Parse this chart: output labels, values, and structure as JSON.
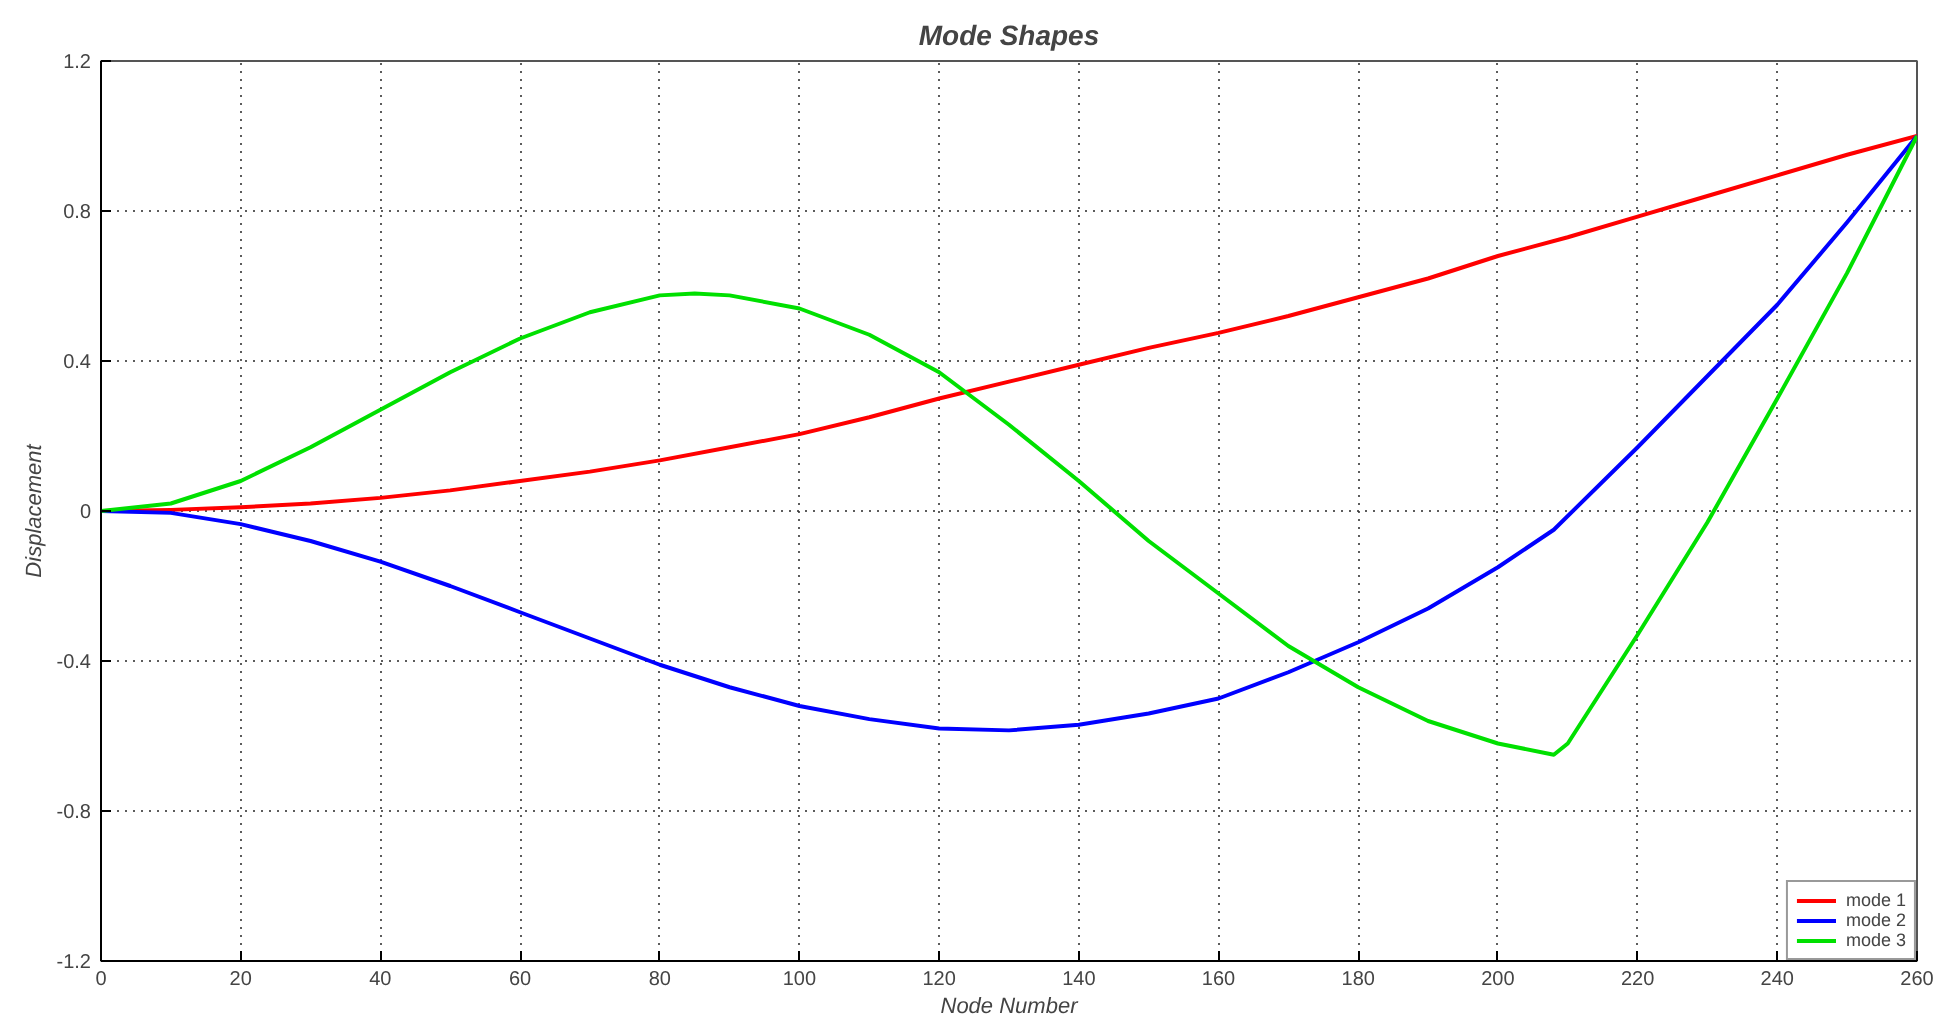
{
  "chart_data": {
    "type": "line",
    "title": "Mode Shapes",
    "xlabel": "Node Number",
    "ylabel": "Displacement",
    "xlim": [
      0,
      260
    ],
    "xticks": [
      0,
      20,
      40,
      60,
      80,
      100,
      120,
      140,
      160,
      180,
      200,
      220,
      240,
      260
    ],
    "ylim": [
      -1.2,
      1.2
    ],
    "yticks": [
      -1.2,
      -0.8,
      -0.4,
      0,
      0.4,
      0.8,
      1.2
    ],
    "grid": true,
    "legend": "bottom right",
    "line_style": "solid",
    "series": [
      {
        "name": "mode 1",
        "color": "#ff0000",
        "x": [
          0,
          10,
          20,
          30,
          40,
          50,
          60,
          70,
          80,
          90,
          100,
          110,
          120,
          130,
          140,
          150,
          160,
          170,
          180,
          190,
          200,
          210,
          220,
          230,
          240,
          250,
          260
        ],
        "values": [
          0,
          0.003,
          0.01,
          0.02,
          0.035,
          0.055,
          0.08,
          0.105,
          0.135,
          0.17,
          0.205,
          0.25,
          0.3,
          0.345,
          0.39,
          0.435,
          0.475,
          0.52,
          0.57,
          0.62,
          0.68,
          0.73,
          0.785,
          0.84,
          0.895,
          0.95,
          1.0
        ]
      },
      {
        "name": "mode 2",
        "color": "#0000ff",
        "x": [
          0,
          10,
          20,
          30,
          40,
          50,
          60,
          70,
          80,
          90,
          100,
          110,
          120,
          130,
          140,
          150,
          160,
          170,
          180,
          190,
          200,
          208,
          220,
          230,
          240,
          250,
          260
        ],
        "values": [
          0,
          -0.005,
          -0.035,
          -0.08,
          -0.135,
          -0.2,
          -0.27,
          -0.34,
          -0.41,
          -0.47,
          -0.52,
          -0.555,
          -0.58,
          -0.585,
          -0.57,
          -0.54,
          -0.5,
          -0.43,
          -0.35,
          -0.26,
          -0.15,
          -0.05,
          0.17,
          0.36,
          0.55,
          0.77,
          1.0
        ]
      },
      {
        "name": "mode 3",
        "color": "#00e000",
        "x": [
          0,
          10,
          20,
          30,
          40,
          50,
          60,
          70,
          80,
          85,
          90,
          100,
          110,
          120,
          130,
          140,
          150,
          160,
          170,
          180,
          190,
          200,
          208,
          210,
          220,
          230,
          240,
          250,
          260
        ],
        "values": [
          0,
          0.02,
          0.08,
          0.17,
          0.27,
          0.37,
          0.46,
          0.53,
          0.575,
          0.58,
          0.575,
          0.54,
          0.47,
          0.37,
          0.23,
          0.08,
          -0.08,
          -0.22,
          -0.36,
          -0.47,
          -0.56,
          -0.62,
          -0.65,
          -0.62,
          -0.33,
          -0.03,
          0.3,
          0.635,
          1.0
        ]
      }
    ]
  }
}
